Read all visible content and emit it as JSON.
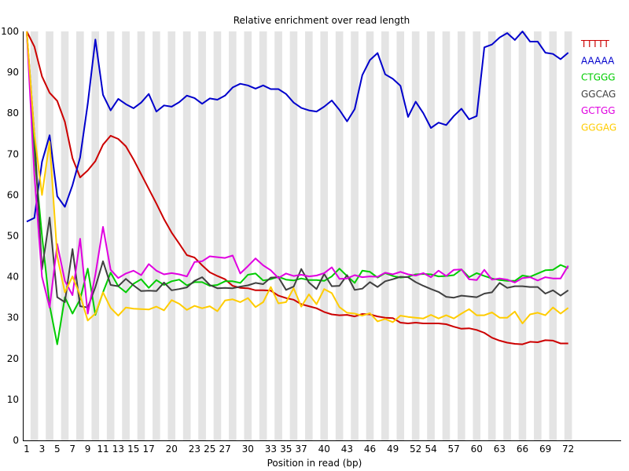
{
  "chart_data": {
    "type": "line",
    "title": "Relative enrichment over read length",
    "xlabel": "Position in read (bp)",
    "ylabel": "",
    "ylim": [
      0,
      100
    ],
    "y_ticks": [
      0,
      10,
      20,
      30,
      40,
      50,
      60,
      70,
      80,
      90,
      100
    ],
    "x_tick_labels": [
      "1",
      "3",
      "5",
      "7",
      "9",
      "11",
      "13",
      "15",
      "17",
      "20",
      "23",
      "25",
      "27",
      "30",
      "33",
      "35",
      "37",
      "40",
      "43",
      "46",
      "49",
      "52",
      "54",
      "57",
      "60",
      "63",
      "66",
      "69",
      "72"
    ],
    "x_tick_positions": [
      1,
      3,
      5,
      7,
      9,
      11,
      13,
      15,
      17,
      20,
      23,
      25,
      27,
      30,
      33,
      35,
      37,
      40,
      43,
      46,
      49,
      52,
      54,
      57,
      60,
      63,
      66,
      69,
      72
    ],
    "grid": "alternating vertical bands",
    "legend_position": "top-right",
    "x": [
      1,
      2,
      3,
      4,
      5,
      6,
      7,
      8,
      9,
      10,
      11,
      12,
      13,
      14,
      15,
      16,
      17,
      18,
      19,
      20,
      21,
      22,
      23,
      24,
      25,
      26,
      27,
      28,
      29,
      30,
      31,
      32,
      33,
      34,
      35,
      36,
      37,
      38,
      39,
      40,
      41,
      42,
      43,
      44,
      45,
      46,
      47,
      48,
      49,
      50,
      51,
      52,
      53,
      54,
      55,
      56,
      57,
      58,
      59,
      60,
      61,
      62,
      63,
      64,
      65,
      66,
      67,
      68,
      69,
      70,
      71,
      72
    ],
    "series": [
      {
        "name": "TTTTT",
        "color": "#cc0000",
        "values": [
          100,
          96.3,
          89,
          85,
          83,
          77.9,
          69,
          64.3,
          66,
          68.3,
          72.3,
          74.5,
          73.7,
          71.9,
          68.7,
          65.1,
          61.5,
          57.9,
          54.1,
          50.8,
          48.1,
          45.3,
          44.7,
          42.8,
          41.1,
          40.2,
          39.4,
          37.8,
          37.3,
          37.2,
          36.7,
          36.7,
          36.6,
          35.4,
          34.8,
          34.4,
          33.3,
          32.8,
          32.3,
          31.4,
          30.8,
          30.6,
          30.7,
          30.3,
          30.9,
          30.8,
          30.3,
          30,
          29.9,
          28.8,
          28.6,
          28.8,
          28.6,
          28.6,
          28.6,
          28.4,
          27.8,
          27.3,
          27.4,
          27,
          26.3,
          25.1,
          24.4,
          23.9,
          23.6,
          23.5,
          24.1,
          24,
          24.5,
          24.4,
          23.7,
          23.7
        ]
      },
      {
        "name": "AAAAA",
        "color": "#0000cc",
        "values": [
          53.5,
          54.4,
          68.1,
          74.6,
          59.7,
          57.1,
          62.4,
          69.2,
          82.3,
          98,
          84.5,
          80.7,
          83.5,
          82.2,
          81.2,
          82.6,
          84.7,
          80.4,
          81.9,
          81.6,
          82.7,
          84.3,
          83.7,
          82.3,
          83.6,
          83.3,
          84.3,
          86.3,
          87.2,
          86.8,
          86,
          86.8,
          85.9,
          85.9,
          84.7,
          82.6,
          81.3,
          80.7,
          80.4,
          81.6,
          83.1,
          80.8,
          78,
          81,
          89.3,
          93,
          94.7,
          89.5,
          88.4,
          86.7,
          79.1,
          82.8,
          80,
          76.4,
          77.7,
          77.1,
          79.3,
          81.1,
          78.5,
          79.3,
          96.1,
          96.8,
          98.5,
          99.6,
          97.9,
          100,
          97.5,
          97.5,
          94.8,
          94.5,
          93.2,
          94.8
        ]
      },
      {
        "name": "CTGGG",
        "color": "#00cc00",
        "values": [
          100,
          70,
          50,
          33,
          23.5,
          35,
          31,
          34.5,
          42,
          30.7,
          36.2,
          41,
          37.7,
          36.2,
          38.3,
          39.4,
          37.3,
          39.2,
          38,
          38.9,
          39.3,
          37.9,
          38.7,
          38.7,
          37.8,
          38,
          38.9,
          38.9,
          38.5,
          40.5,
          40.8,
          39.1,
          39.4,
          40,
          39.3,
          39.1,
          39.6,
          39.2,
          39.2,
          39,
          40.1,
          42,
          40.2,
          38.5,
          41.5,
          41.2,
          39.8,
          40.9,
          40.2,
          39.8,
          40,
          40.6,
          40.7,
          40.6,
          40.1,
          40.2,
          40.4,
          41.8,
          39.9,
          40.9,
          40.2,
          39.6,
          39.2,
          39,
          39,
          40.3,
          40,
          40.8,
          41.6,
          41.7,
          42.9,
          42.1
        ]
      },
      {
        "name": "GGCAG",
        "color": "#404040",
        "values": [
          100,
          75,
          41.8,
          54.5,
          35,
          33.8,
          46.8,
          32.8,
          32.5,
          37.5,
          43.8,
          38,
          37.7,
          39.5,
          37.9,
          36.5,
          36.6,
          36.5,
          38.6,
          36.7,
          37,
          37.4,
          39,
          39.9,
          38,
          37.2,
          37.3,
          37.2,
          37.6,
          37.9,
          38.5,
          38.2,
          39.8,
          39.9,
          36.8,
          37.6,
          41.9,
          38.6,
          37,
          40.7,
          37.7,
          37.8,
          40.4,
          36.8,
          37.1,
          38.7,
          37.5,
          38.9,
          39.4,
          40,
          39.9,
          38.7,
          37.8,
          37,
          36.3,
          35.1,
          34.9,
          35.4,
          35.2,
          35,
          35.9,
          36.2,
          38.5,
          37.3,
          37.7,
          37.7,
          37.5,
          37.5,
          35.9,
          36.7,
          35.4,
          36.7
        ]
      },
      {
        "name": "GCTGG",
        "color": "#e000e0",
        "values": [
          100,
          65,
          40,
          32.5,
          48,
          39,
          35.5,
          49.3,
          31,
          40.5,
          52.2,
          41.7,
          39.7,
          40.8,
          41.5,
          40.4,
          43.1,
          41.5,
          40.6,
          40.9,
          40.6,
          40.1,
          43.6,
          43.8,
          45,
          44.8,
          44.6,
          45.2,
          40.8,
          42.6,
          44.5,
          42.8,
          41.6,
          39.7,
          40.8,
          40.2,
          40.5,
          40.1,
          40.3,
          40.9,
          42.3,
          39.5,
          39.6,
          40.4,
          39.9,
          40.1,
          40,
          41,
          40.6,
          41.2,
          40.6,
          40.3,
          40.9,
          39.9,
          41.5,
          40.2,
          41.7,
          41.8,
          39.4,
          39.2,
          41.7,
          39.3,
          39.6,
          39.3,
          38.6,
          39.7,
          39.9,
          39.1,
          39.9,
          39.6,
          39.6,
          42.7
        ]
      },
      {
        "name": "GGGAG",
        "color": "#ffcc00",
        "values": [
          100,
          75,
          60,
          73,
          45,
          36.2,
          40.1,
          35.5,
          29.3,
          31,
          36.2,
          32.4,
          30.5,
          32.5,
          32.2,
          32.1,
          32,
          32.7,
          31.8,
          34.3,
          33.4,
          31.9,
          32.9,
          32.3,
          32.8,
          31.6,
          34.2,
          34.5,
          33.8,
          34.8,
          32.6,
          33.8,
          37.5,
          33.5,
          33.8,
          37.2,
          32.7,
          35.7,
          33.3,
          37,
          36,
          32.6,
          31.2,
          31,
          30.5,
          31.1,
          29.1,
          29.7,
          28.9,
          30.5,
          30.2,
          30,
          29.8,
          30.7,
          29.8,
          30.6,
          29.8,
          31,
          32.1,
          30.6,
          30.6,
          31.3,
          30,
          30,
          31.5,
          28.6,
          30.8,
          31.2,
          30.6,
          32.5,
          31,
          32.4
        ]
      }
    ]
  }
}
